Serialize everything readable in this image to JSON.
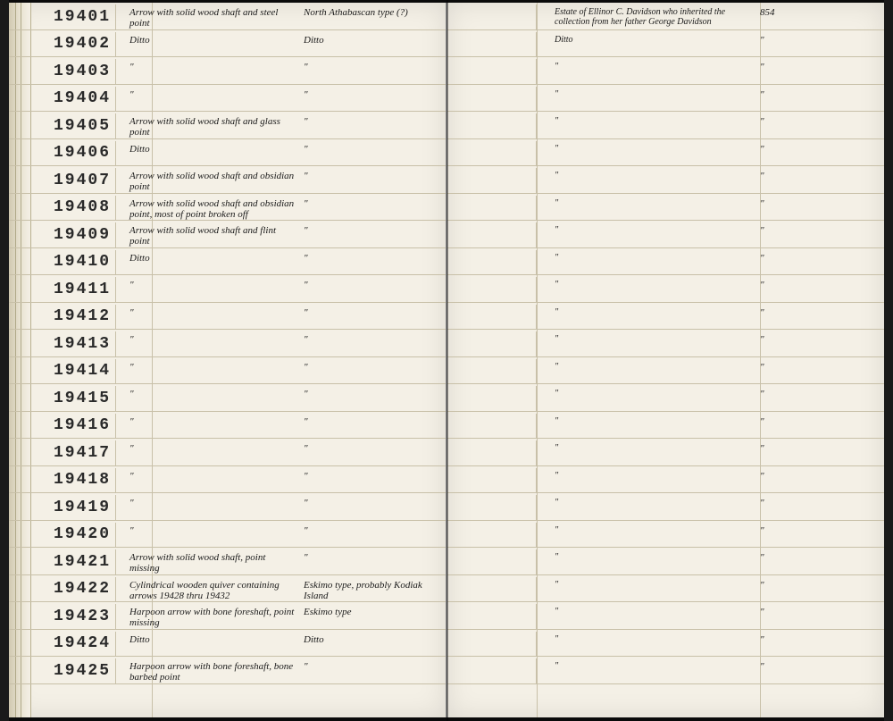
{
  "left_page": {
    "rows": [
      {
        "id": "19401",
        "desc": "Arrow with solid wood shaft and steel point",
        "loc": "North Athabascan type (?)"
      },
      {
        "id": "19402",
        "desc": "Ditto",
        "loc": "Ditto"
      },
      {
        "id": "19403",
        "desc": "\"",
        "loc": "\""
      },
      {
        "id": "19404",
        "desc": "\"",
        "loc": "\""
      },
      {
        "id": "19405",
        "desc": "Arrow with solid wood shaft and glass point",
        "loc": "\""
      },
      {
        "id": "19406",
        "desc": "Ditto",
        "loc": "\""
      },
      {
        "id": "19407",
        "desc": "Arrow with solid wood shaft and obsidian point",
        "loc": "\""
      },
      {
        "id": "19408",
        "desc": "Arrow with solid wood shaft and obsidian point, most of point broken off",
        "loc": "\""
      },
      {
        "id": "19409",
        "desc": "Arrow with solid wood shaft and flint point",
        "loc": "\""
      },
      {
        "id": "19410",
        "desc": "Ditto",
        "loc": "\""
      },
      {
        "id": "19411",
        "desc": "\"",
        "loc": "\""
      },
      {
        "id": "19412",
        "desc": "\"",
        "loc": "\""
      },
      {
        "id": "19413",
        "desc": "\"",
        "loc": "\""
      },
      {
        "id": "19414",
        "desc": "\"",
        "loc": "\""
      },
      {
        "id": "19415",
        "desc": "\"",
        "loc": "\""
      },
      {
        "id": "19416",
        "desc": "\"",
        "loc": "\""
      },
      {
        "id": "19417",
        "desc": "\"",
        "loc": "\""
      },
      {
        "id": "19418",
        "desc": "\"",
        "loc": "\""
      },
      {
        "id": "19419",
        "desc": "\"",
        "loc": "\""
      },
      {
        "id": "19420",
        "desc": "\"",
        "loc": "\""
      },
      {
        "id": "19421",
        "desc": "Arrow with solid wood shaft, point missing",
        "loc": "\""
      },
      {
        "id": "19422",
        "desc": "Cylindrical wooden quiver containing arrows 19428 thru 19432",
        "loc": "Eskimo type, probably Kodiak Island"
      },
      {
        "id": "19423",
        "desc": "Harpoon arrow with bone foreshaft, point missing",
        "loc": "Eskimo type"
      },
      {
        "id": "19424",
        "desc": "Ditto",
        "loc": "Ditto"
      },
      {
        "id": "19425",
        "desc": "Harpoon arrow with bone foreshaft, bone barbed point",
        "loc": "\""
      }
    ]
  },
  "right_page": {
    "rows": [
      {
        "source": "Estate of Ellinor C. Davidson who inherited the collection from her father George Davidson",
        "ref": "854"
      },
      {
        "source": "Ditto",
        "ref": "\""
      },
      {
        "source": "\"",
        "ref": "\""
      },
      {
        "source": "\"",
        "ref": "\""
      },
      {
        "source": "\"",
        "ref": "\""
      },
      {
        "source": "\"",
        "ref": "\""
      },
      {
        "source": "\"",
        "ref": "\""
      },
      {
        "source": "\"",
        "ref": "\""
      },
      {
        "source": "\"",
        "ref": "\""
      },
      {
        "source": "\"",
        "ref": "\""
      },
      {
        "source": "\"",
        "ref": "\""
      },
      {
        "source": "\"",
        "ref": "\""
      },
      {
        "source": "\"",
        "ref": "\""
      },
      {
        "source": "\"",
        "ref": "\""
      },
      {
        "source": "\"",
        "ref": "\""
      },
      {
        "source": "\"",
        "ref": "\""
      },
      {
        "source": "\"",
        "ref": "\""
      },
      {
        "source": "\"",
        "ref": "\""
      },
      {
        "source": "\"",
        "ref": "\""
      },
      {
        "source": "\"",
        "ref": "\""
      },
      {
        "source": "\"",
        "ref": "\""
      },
      {
        "source": "\"",
        "ref": "\""
      },
      {
        "source": "\"",
        "ref": "\""
      },
      {
        "source": "\"",
        "ref": "\""
      },
      {
        "source": "\"",
        "ref": "\""
      }
    ]
  },
  "styling": {
    "page_bg": "#f4f0e6",
    "rule_color": "#c8c0a8",
    "id_font": "Courier New",
    "id_fontsize": 18,
    "script_fontsize": 11,
    "row_height": 30.5,
    "book_width": 1000,
    "book_height": 807
  }
}
